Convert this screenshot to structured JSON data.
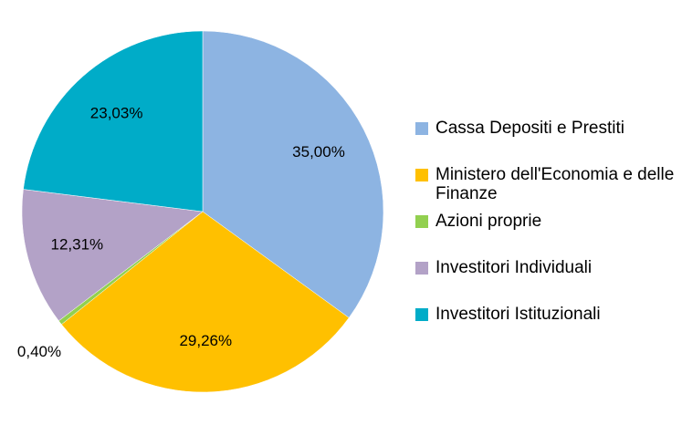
{
  "chart_data": {
    "type": "pie",
    "categories": [
      "Cassa Depositi e Prestiti",
      "Ministero dell'Economia e delle Finanze",
      "Azioni proprie",
      "Investitori Individuali",
      "Investitori Istituzionali"
    ],
    "values": [
      35.0,
      29.26,
      0.4,
      12.31,
      23.03
    ],
    "value_labels": [
      "35,00%",
      "29,26%",
      "0,40%",
      "12,31%",
      "23,03%"
    ],
    "colors": [
      "#8db4e2",
      "#ffc000",
      "#92d050",
      "#b3a2c7",
      "#00acc8"
    ],
    "legend": "right"
  }
}
